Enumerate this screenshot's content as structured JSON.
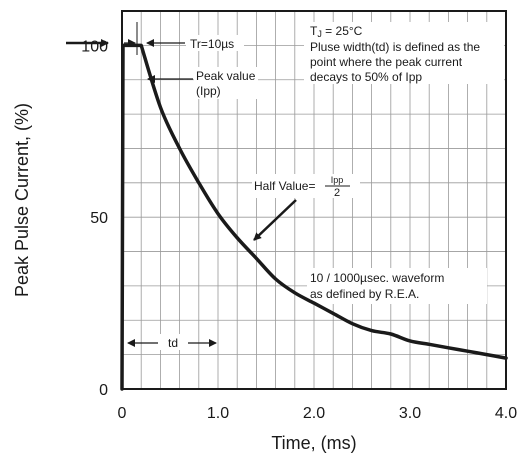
{
  "chart_data": {
    "type": "line",
    "xlabel": "Time, (ms)",
    "ylabel": "Peak Pulse Current, (%)",
    "xlim": [
      0,
      4.0
    ],
    "ylim": [
      0,
      110
    ],
    "x_ticks": [
      "0",
      "1.0",
      "2.0",
      "3.0",
      "4.0"
    ],
    "y_ticks": [
      "0",
      "50",
      "100"
    ],
    "grid": "on",
    "series": [
      {
        "x": [
          0,
          0.01,
          0.2,
          0.4,
          0.6,
          0.8,
          1.0,
          1.2,
          1.4,
          1.6,
          1.8,
          2.0,
          2.2,
          2.4,
          2.6,
          2.8,
          3.0,
          3.2,
          3.4,
          3.6,
          3.8,
          4.0
        ],
        "y": [
          0,
          100,
          100,
          82,
          70,
          60,
          51,
          44,
          38,
          32,
          28,
          25,
          22,
          19,
          17,
          16,
          14,
          13,
          12,
          11,
          10,
          9
        ]
      }
    ],
    "annotations": {
      "tr": "Tr=10µs",
      "peak_line1": "Peak value",
      "peak_line2": "(Ipp)",
      "tj": "TJ = 25°C",
      "note1": "Pluse width(td) is defined as the",
      "note2": "point where the peak current",
      "note3": "decays to 50% of Ipp",
      "half_prefix": "Half Value=",
      "half_num": "Ipp",
      "half_den": "2",
      "waveform1": "10 / 1000µsec. waveform",
      "waveform2": "as defined by R.E.A.",
      "td": "td"
    }
  }
}
